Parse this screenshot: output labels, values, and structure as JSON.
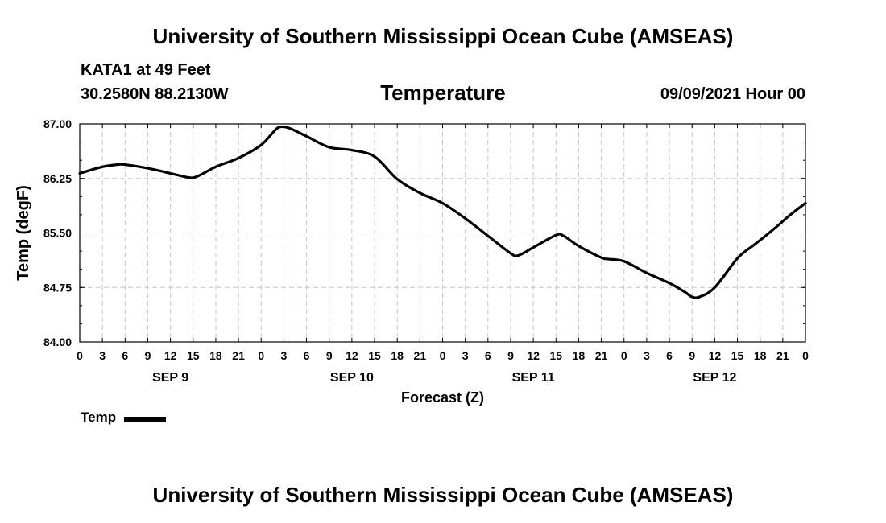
{
  "header": {
    "title": "University of Southern Mississippi Ocean Cube (AMSEAS)",
    "station": "KATA1 at 49 Feet",
    "coords": "30.2580N  88.2130W",
    "variable": "Temperature",
    "datetime": "09/09/2021 Hour 00"
  },
  "footer": {
    "title": "University of Southern Mississippi Ocean Cube (AMSEAS)"
  },
  "chart_data": {
    "type": "line",
    "title": "Temperature",
    "xlabel": "Forecast (Z)",
    "ylabel": "Temp (degF)",
    "xlim": [
      0,
      96
    ],
    "ylim": [
      84.0,
      87.0
    ],
    "grid": true,
    "y_ticks": [
      "84.00",
      "84.75",
      "85.50",
      "86.25",
      "87.00"
    ],
    "x_tick_labels": [
      "0",
      "3",
      "6",
      "9",
      "12",
      "15",
      "18",
      "21",
      "0",
      "3",
      "6",
      "9",
      "12",
      "15",
      "18",
      "21",
      "0",
      "3",
      "6",
      "9",
      "12",
      "15",
      "18",
      "21",
      "0",
      "3",
      "6",
      "9",
      "12",
      "15",
      "18",
      "21",
      "0"
    ],
    "date_labels": [
      {
        "label": "SEP 9",
        "hour": 12
      },
      {
        "label": "SEP 10",
        "hour": 36
      },
      {
        "label": "SEP 11",
        "hour": 60
      },
      {
        "label": "SEP 12",
        "hour": 84
      }
    ],
    "legend": {
      "position": "bottom-left",
      "entries": [
        "Temp"
      ]
    },
    "series": [
      {
        "name": "Temp",
        "x": [
          0,
          3,
          5,
          6,
          9,
          12,
          14,
          15,
          16,
          18,
          21,
          24,
          26,
          27,
          28,
          30,
          33,
          36,
          39,
          42,
          45,
          48,
          51,
          54,
          57,
          58,
          60,
          63,
          64,
          66,
          69,
          70,
          72,
          75,
          78,
          80,
          81,
          82,
          84,
          87,
          89,
          90,
          92,
          94,
          96
        ],
        "values": [
          86.32,
          86.41,
          86.44,
          86.44,
          86.39,
          86.32,
          86.27,
          86.26,
          86.3,
          86.41,
          86.53,
          86.71,
          86.93,
          86.96,
          86.93,
          86.83,
          86.68,
          86.64,
          86.55,
          86.24,
          86.05,
          85.91,
          85.7,
          85.46,
          85.22,
          85.19,
          85.3,
          85.47,
          85.46,
          85.32,
          85.16,
          85.14,
          85.11,
          84.95,
          84.81,
          84.69,
          84.62,
          84.62,
          84.75,
          85.15,
          85.32,
          85.4,
          85.57,
          85.75,
          85.91
        ]
      }
    ]
  }
}
